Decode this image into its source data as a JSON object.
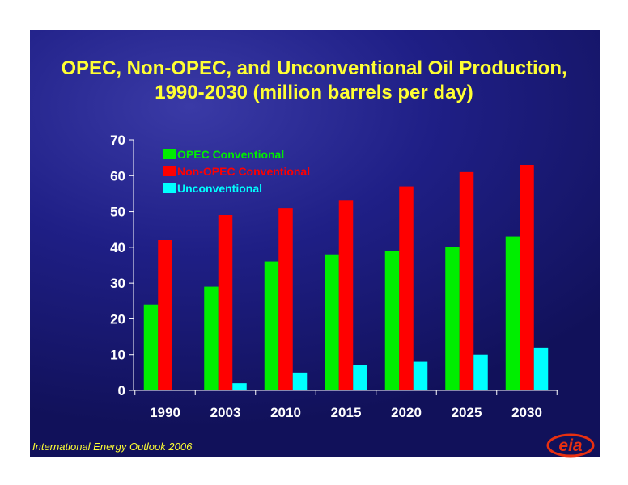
{
  "chart_data": {
    "type": "bar",
    "title": "OPEC, Non-OPEC, and Unconventional Oil Production,",
    "subtitle": "1990-2030 (million barrels per day)",
    "xlabel": "",
    "ylabel": "",
    "ylim": [
      0,
      70
    ],
    "yticks": [
      0,
      10,
      20,
      30,
      40,
      50,
      60,
      70
    ],
    "grid": false,
    "legend_position": "top-left",
    "categories": [
      "1990",
      "2003",
      "2010",
      "2015",
      "2020",
      "2025",
      "2030"
    ],
    "series": [
      {
        "name": "OPEC Conventional",
        "color": "#00ee00",
        "values": [
          24,
          29,
          36,
          38,
          39,
          40,
          43
        ]
      },
      {
        "name": "Non-OPEC Conventional",
        "color": "#ff0000",
        "values": [
          42,
          49,
          51,
          53,
          57,
          61,
          63
        ]
      },
      {
        "name": "Unconventional",
        "color": "#00ffff",
        "values": [
          0,
          2,
          5,
          7,
          8,
          10,
          12
        ]
      }
    ]
  },
  "footer": {
    "source": "International Energy Outlook 2006",
    "logo_text": "eia"
  },
  "colors": {
    "title": "#ffff33",
    "axis": "#ffffff",
    "logo": "#e83010"
  }
}
